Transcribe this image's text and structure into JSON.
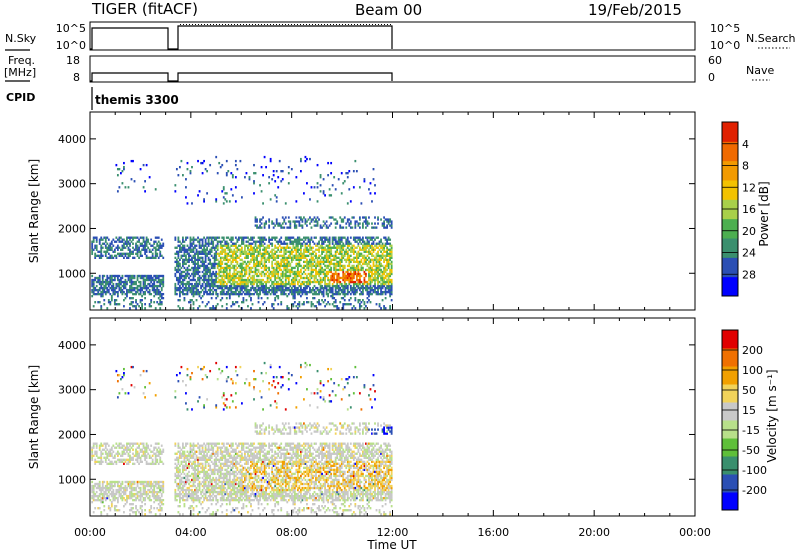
{
  "header": {
    "radar": "TIGER (fitACF)",
    "beam": "Beam 00",
    "date": "19/Feb/2015"
  },
  "panels": {
    "nsky_label": "N.Sky",
    "nsky_ticks": [
      "10^5",
      "10^0"
    ],
    "nsearch_label": "N.Search",
    "freq_label_1": "Freq.",
    "freq_label_2": "[MHz]",
    "freq_ticks": [
      "18",
      "8"
    ],
    "nave_ticks": [
      "60",
      "0"
    ],
    "nave_label": "Nave",
    "cpid_label": "CPID",
    "cpid_value": "themis 3300"
  },
  "chart_data": [
    {
      "type": "heatmap",
      "name": "power",
      "xlabel": "Time UT",
      "ylabel": "Slant Range [km]",
      "xlim": [
        0,
        24
      ],
      "ylim": [
        180,
        4600
      ],
      "xticks": [
        "00:00",
        "04:00",
        "08:00",
        "12:00",
        "16:00",
        "20:00",
        "00:00"
      ],
      "yticks": [
        1000,
        2000,
        3000,
        4000
      ],
      "colorbar": {
        "label": "Power [dB]",
        "ticks": [
          "4",
          "8",
          "12",
          "16",
          "20",
          "24",
          "28"
        ],
        "colors": [
          "#0000ff",
          "#2b4fb4",
          "#3a8f6e",
          "#4caf50",
          "#a8d04a",
          "#f2c200",
          "#f29a00",
          "#f06a00",
          "#e02000"
        ]
      },
      "data_gap": [
        2.9,
        3.3
      ],
      "data_end": 11.95
    },
    {
      "type": "heatmap",
      "name": "velocity",
      "xlabel": "Time UT",
      "ylabel": "Slant Range [km]",
      "xlim": [
        0,
        24
      ],
      "ylim": [
        180,
        4600
      ],
      "xticks": [
        "00:00",
        "04:00",
        "08:00",
        "12:00",
        "16:00",
        "20:00",
        "00:00"
      ],
      "yticks": [
        1000,
        2000,
        3000,
        4000
      ],
      "colorbar": {
        "label": "Velocity [m s⁻¹]",
        "ticks": [
          "200",
          "100",
          "50",
          "15",
          "-15",
          "-50",
          "-100",
          "-200"
        ],
        "colors": [
          "#0000ff",
          "#2b4fb4",
          "#3a8f6e",
          "#5fbf3a",
          "#b8e08a",
          "#c8c8c8",
          "#f2d35a",
          "#f2a000",
          "#f07000",
          "#e00000"
        ]
      },
      "data_gap": [
        2.9,
        3.3
      ],
      "data_end": 11.95
    }
  ]
}
